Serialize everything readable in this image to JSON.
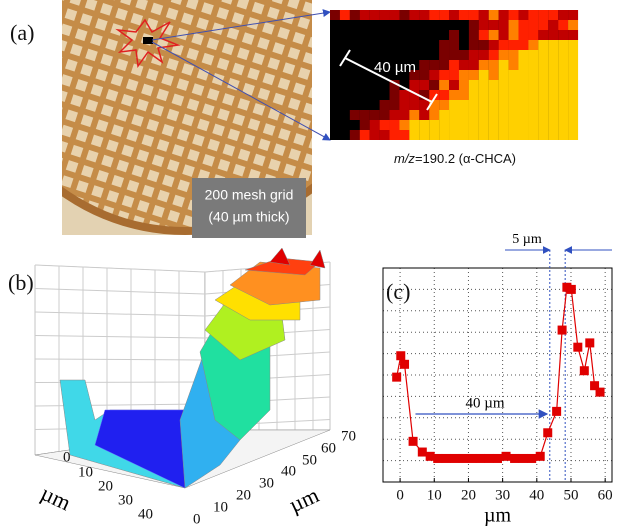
{
  "panel_a": {
    "label": "(a)",
    "photo_caption": [
      "200 mesh grid",
      "(40 µm thick)"
    ],
    "scale_label": "40 µm",
    "mz_label": "m/z",
    "mz_value": "=190.2 (α-CHCA)"
  },
  "panel_b": {
    "label": "(b)",
    "x_ticks": [
      "0",
      "10",
      "20",
      "30",
      "40"
    ],
    "x_label": "µm",
    "y_ticks": [
      "0",
      "10",
      "20",
      "30",
      "40",
      "50",
      "60",
      "70"
    ],
    "y_label": "µm"
  },
  "chart_data": {
    "type": "line",
    "annotations": [
      "(c)",
      "40 µm",
      "5 µm"
    ],
    "xlabel": "µm",
    "xlim": [
      -5,
      62
    ],
    "xticks": [
      0,
      10,
      20,
      30,
      40,
      50,
      60
    ],
    "ylim": [
      0,
      100
    ],
    "grid": true,
    "series": [
      {
        "color": "#e00000",
        "x": [
          -1,
          0.2,
          1.3,
          3.8,
          6.5,
          8.8,
          11,
          13.5,
          16,
          18.5,
          21,
          23.5,
          26,
          28.5,
          31,
          33.5,
          36,
          38.5,
          41,
          43.2,
          45.8,
          47.4,
          48.8,
          50.1,
          52,
          53.9,
          55.5,
          56.9,
          58.5
        ],
        "values": [
          49,
          59,
          55,
          19,
          14,
          12,
          11,
          11,
          11,
          11,
          11,
          11,
          11,
          11,
          12,
          11,
          11,
          11,
          12,
          23,
          33,
          71,
          91,
          90,
          63,
          52,
          65,
          45,
          42
        ]
      }
    ]
  }
}
